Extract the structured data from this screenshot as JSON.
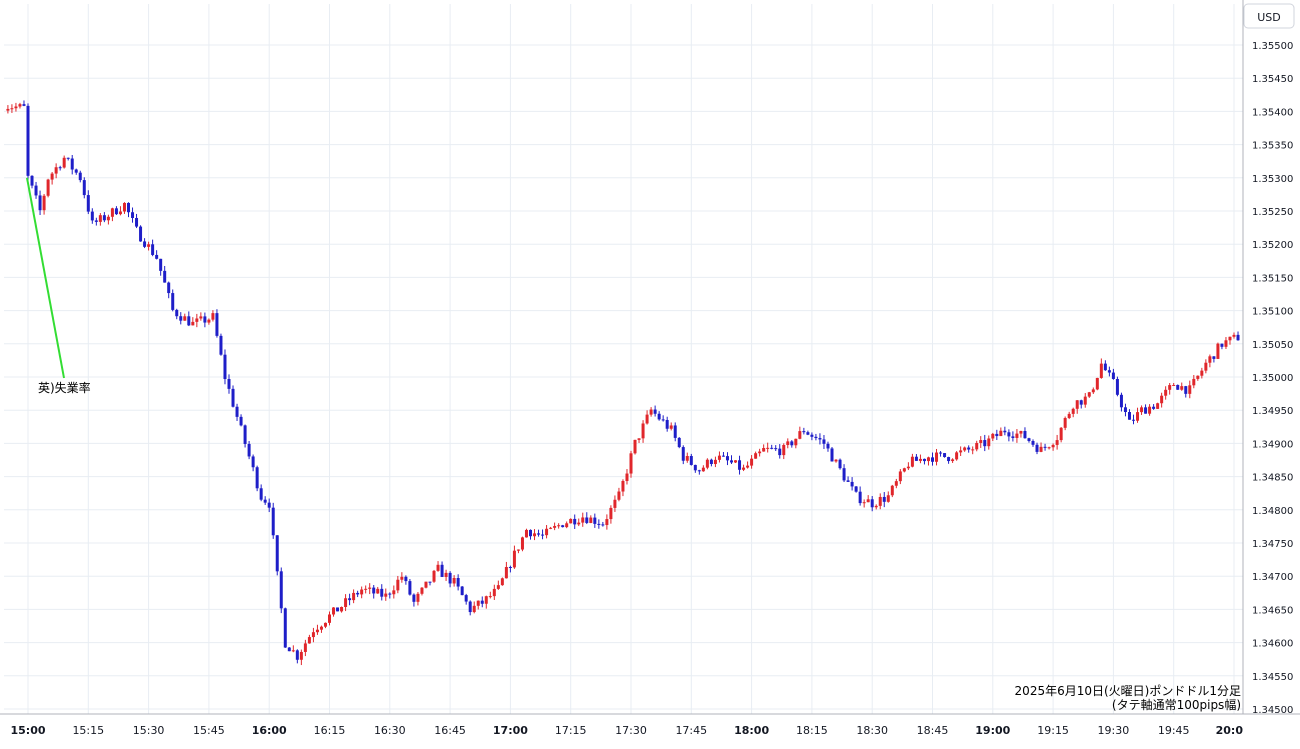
{
  "currency": "USD",
  "annotation": "英)失業率",
  "caption_line1": "2025年6月10日(火曜日)ポンドドル1分足",
  "caption_line2": "(タテ軸通常100pips幅)",
  "colors": {
    "up": "#e0262b",
    "down": "#1e1ec8",
    "grid": "#e8edf3",
    "annotation_line": "#33dd33",
    "axis": "#b0b3bb"
  },
  "chart_data": {
    "type": "candlestick",
    "title": "2025年6月10日(火曜日)ポンドドル1分足",
    "subtitle": "(タテ軸通常100pips幅)",
    "ylim": [
      1.3445,
      1.3555
    ],
    "yticks": [
      "1.35500",
      "1.35450",
      "1.35400",
      "1.35350",
      "1.35300",
      "1.35250",
      "1.35200",
      "1.35150",
      "1.35100",
      "1.35050",
      "1.35000",
      "1.34950",
      "1.34900",
      "1.34850",
      "1.34800",
      "1.34750",
      "1.34700",
      "1.34650",
      "1.34600",
      "1.34550",
      "1.34500"
    ],
    "xticks": [
      "15:00",
      "15:15",
      "15:30",
      "15:45",
      "16:00",
      "16:15",
      "16:30",
      "16:45",
      "17:00",
      "17:15",
      "17:30",
      "17:45",
      "18:00",
      "18:15",
      "18:30",
      "18:45",
      "19:00",
      "19:15",
      "19:30",
      "19:45",
      "20:0"
    ],
    "major_xticks": [
      "15:00",
      "16:00",
      "17:00",
      "18:00",
      "19:00",
      "20:0"
    ],
    "grid": true,
    "price_path": [
      [
        "14:54",
        1.3541
      ],
      [
        "15:00",
        1.35405
      ],
      [
        "15:01",
        1.353
      ],
      [
        "15:04",
        1.3525
      ],
      [
        "15:06",
        1.353
      ],
      [
        "15:10",
        1.3533
      ],
      [
        "15:14",
        1.353
      ],
      [
        "15:17",
        1.3523
      ],
      [
        "15:20",
        1.3524
      ],
      [
        "15:25",
        1.3526
      ],
      [
        "15:28",
        1.3522
      ],
      [
        "15:33",
        1.3518
      ],
      [
        "15:37",
        1.351
      ],
      [
        "15:42",
        1.3508
      ],
      [
        "15:47",
        1.3509
      ],
      [
        "15:50",
        1.35
      ],
      [
        "15:54",
        1.3492
      ],
      [
        "15:59",
        1.3482
      ],
      [
        "16:01",
        1.3481
      ],
      [
        "16:03",
        1.347
      ],
      [
        "16:05",
        1.346
      ],
      [
        "16:08",
        1.3458
      ],
      [
        "16:12",
        1.3462
      ],
      [
        "16:18",
        1.3465
      ],
      [
        "16:24",
        1.3468
      ],
      [
        "16:30",
        1.3467
      ],
      [
        "16:34",
        1.347
      ],
      [
        "16:37",
        1.3466
      ],
      [
        "16:43",
        1.3471
      ],
      [
        "16:47",
        1.3469
      ],
      [
        "16:51",
        1.3465
      ],
      [
        "16:54",
        1.3466
      ],
      [
        "16:58",
        1.3468
      ],
      [
        "17:01",
        1.3472
      ],
      [
        "17:05",
        1.3477
      ],
      [
        "17:09",
        1.3476
      ],
      [
        "17:14",
        1.3478
      ],
      [
        "17:19",
        1.3479
      ],
      [
        "17:24",
        1.3478
      ],
      [
        "17:28",
        1.3482
      ],
      [
        "17:32",
        1.349
      ],
      [
        "17:36",
        1.3495
      ],
      [
        "17:41",
        1.3492
      ],
      [
        "17:44",
        1.3488
      ],
      [
        "17:48",
        1.3486
      ],
      [
        "17:52",
        1.3488
      ],
      [
        "17:56",
        1.3487
      ],
      [
        "17:59",
        1.3486
      ],
      [
        "18:04",
        1.3489
      ],
      [
        "18:09",
        1.3489
      ],
      [
        "18:14",
        1.3492
      ],
      [
        "18:19",
        1.349
      ],
      [
        "18:23",
        1.3486
      ],
      [
        "18:27",
        1.3482
      ],
      [
        "18:31",
        1.3481
      ],
      [
        "18:35",
        1.3482
      ],
      [
        "18:40",
        1.3487
      ],
      [
        "18:45",
        1.3488
      ],
      [
        "18:50",
        1.3488
      ],
      [
        "18:55",
        1.3489
      ],
      [
        "18:59",
        1.349
      ],
      [
        "19:04",
        1.3492
      ],
      [
        "19:09",
        1.3491
      ],
      [
        "19:13",
        1.3489
      ],
      [
        "19:17",
        1.3491
      ],
      [
        "19:21",
        1.3496
      ],
      [
        "19:25",
        1.3497
      ],
      [
        "19:28",
        1.3502
      ],
      [
        "19:31",
        1.3499
      ],
      [
        "19:35",
        1.3493
      ],
      [
        "19:38",
        1.3495
      ],
      [
        "19:42",
        1.3496
      ],
      [
        "19:46",
        1.3499
      ],
      [
        "19:50",
        1.3498
      ],
      [
        "19:54",
        1.3502
      ],
      [
        "19:58",
        1.3505
      ],
      [
        "20:02",
        1.3506
      ]
    ]
  }
}
